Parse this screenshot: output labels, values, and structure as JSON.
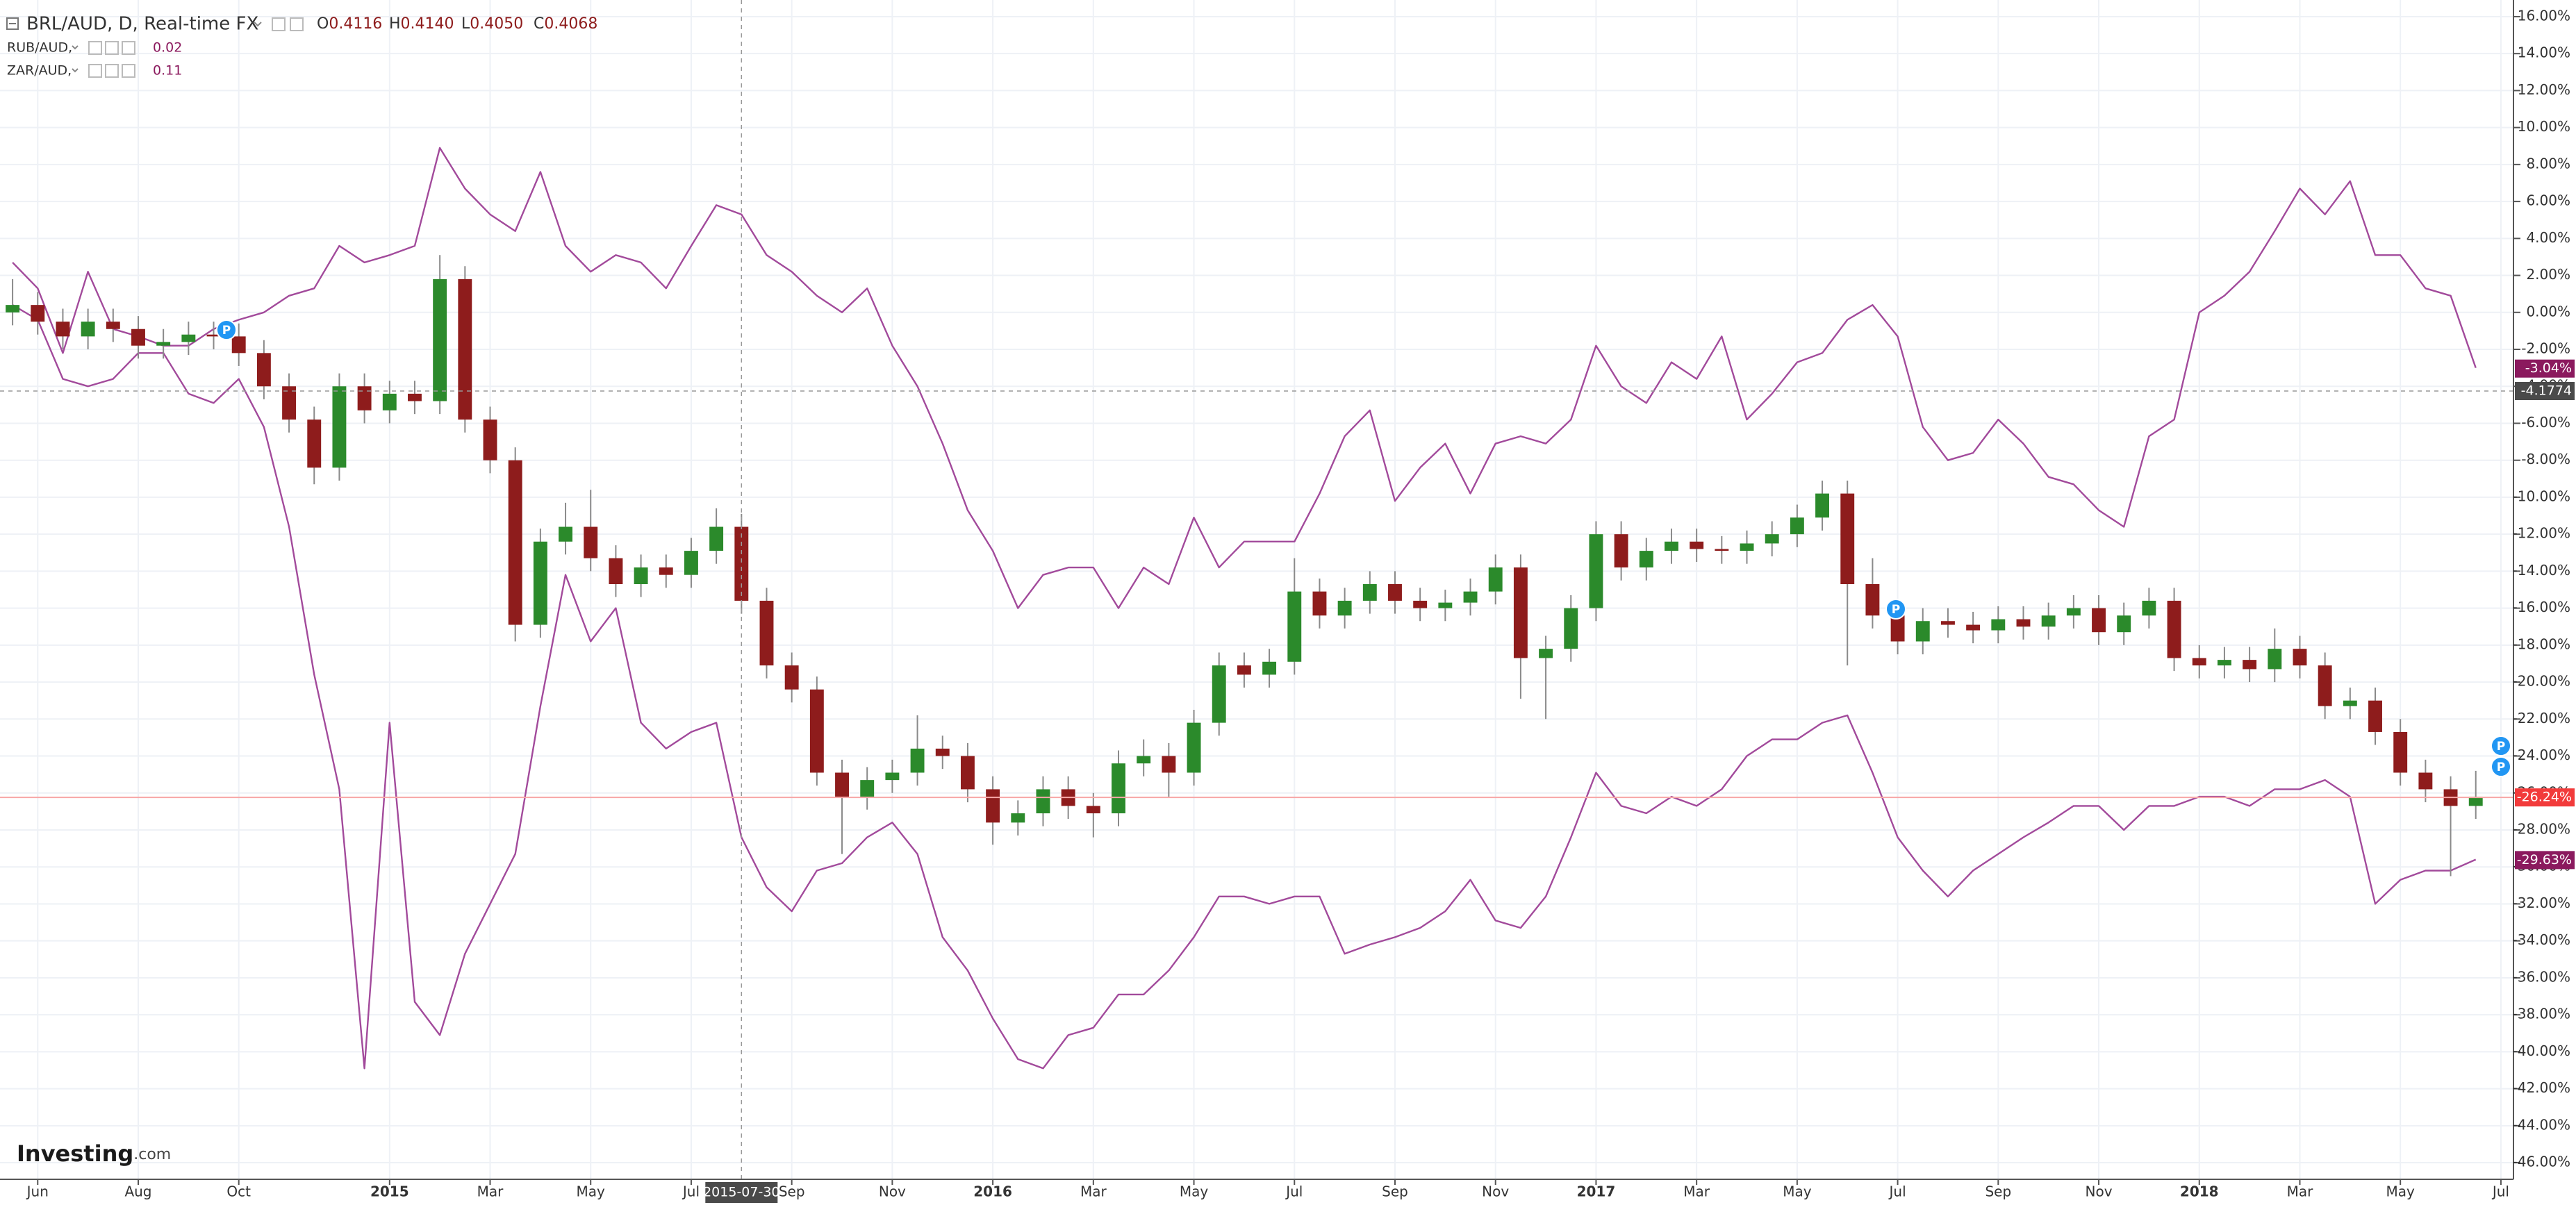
{
  "brand": "Investing",
  "brand_suffix": ".com",
  "chart_data": {
    "type": "candlestick",
    "title": "BRL/AUD, D, Real-time FX",
    "ohlc_legend": [
      {
        "prefix": "O",
        "value": 0.4116
      },
      {
        "prefix": "H",
        "value": 0.414,
        "label": "0.4140"
      },
      {
        "prefix": "L",
        "value": 0.405,
        "label": "0.4050"
      },
      {
        "prefix": "C",
        "value": 0.4068
      }
    ],
    "crosshair": {
      "x_label": "2015-07-30",
      "y_label": -4.1774
    },
    "event_markers": [
      "P",
      "P",
      "P",
      "P"
    ],
    "grid": true,
    "ylim": [
      -46.9,
      16.9
    ],
    "yticks": [
      {
        "value": 16,
        "label": "16.00%"
      },
      {
        "value": 14,
        "label": "14.00%"
      },
      {
        "value": 12,
        "label": "12.00%"
      },
      {
        "value": 10,
        "label": "10.00%"
      },
      {
        "value": 8,
        "label": "8.00%"
      },
      {
        "value": 6,
        "label": "6.00%"
      },
      {
        "value": 4,
        "label": "4.00%"
      },
      {
        "value": 2,
        "label": "2.00%"
      },
      {
        "value": 0,
        "label": "0.00%"
      },
      {
        "value": -2,
        "label": "-2.00%"
      },
      {
        "value": -4,
        "label": "-4.00%"
      },
      {
        "value": -6,
        "label": "-6.00%"
      },
      {
        "value": -8,
        "label": "-8.00%"
      },
      {
        "value": -10,
        "label": "-10.00%"
      },
      {
        "value": -12,
        "label": "-12.00%"
      },
      {
        "value": -14,
        "label": "-14.00%"
      },
      {
        "value": -16,
        "label": "-16.00%"
      },
      {
        "value": -18,
        "label": "-18.00%"
      },
      {
        "value": -20,
        "label": "-20.00%"
      },
      {
        "value": -22,
        "label": "-22.00%"
      },
      {
        "value": -24,
        "label": "-24.00%"
      },
      {
        "value": -26,
        "label": "-26.00%"
      },
      {
        "value": -28,
        "label": "-28.00%"
      },
      {
        "value": -30,
        "label": "-30.00%"
      },
      {
        "value": -32,
        "label": "-32.00%"
      },
      {
        "value": -34,
        "label": "-34.00%"
      },
      {
        "value": -36,
        "label": "-36.00%"
      },
      {
        "value": -38,
        "label": "-38.00%"
      },
      {
        "value": -40,
        "label": "-40.00%"
      },
      {
        "value": -42,
        "label": "-42.00%"
      },
      {
        "value": -44,
        "label": "-44.00%"
      },
      {
        "value": -46,
        "label": "-46.00%"
      }
    ],
    "categories": [
      null,
      "Jun",
      null,
      null,
      null,
      "Aug",
      null,
      null,
      null,
      "Oct",
      null,
      null,
      null,
      null,
      null,
      "2015",
      null,
      null,
      null,
      "Mar",
      null,
      null,
      null,
      "May",
      null,
      null,
      null,
      "Jul",
      null,
      null,
      null,
      "Sep",
      null,
      null,
      null,
      "Nov",
      null,
      null,
      null,
      "2016",
      null,
      null,
      null,
      "Mar",
      null,
      null,
      null,
      "May",
      null,
      null,
      null,
      "Jul",
      null,
      null,
      null,
      "Sep",
      null,
      null,
      null,
      "Nov",
      null,
      null,
      null,
      "2017",
      null,
      null,
      null,
      "Mar",
      null,
      null,
      null,
      "May",
      null,
      null,
      null,
      "Jul",
      null,
      null,
      null,
      "Sep",
      null,
      null,
      null,
      "Nov",
      null,
      null,
      null,
      "2018",
      null,
      null,
      null,
      "Mar",
      null,
      null,
      null,
      "May",
      null,
      null,
      null,
      "Jul"
    ],
    "series": [
      {
        "type": "candlestick",
        "color_up": "#2b8a2b",
        "color_down": "#8e1c1c",
        "wick_color": "#8a8a8a",
        "last_label": {
          "value": -26.24,
          "label": "-26.24%"
        },
        "last_color": "#f23b3b",
        "values": [
          [
            0,
            1.8,
            -0.7,
            0.4
          ],
          [
            0.4,
            1.1,
            -1.2,
            -0.5
          ],
          [
            -0.5,
            0.2,
            -2,
            -1.3
          ],
          [
            -1.3,
            0.2,
            -2,
            -0.5
          ],
          [
            -0.5,
            0.2,
            -1.6,
            -0.9
          ],
          [
            -0.9,
            -0.2,
            -2.5,
            -1.8
          ],
          [
            -1.8,
            -0.9,
            -2.5,
            -1.6
          ],
          [
            -1.6,
            -0.5,
            -2.3,
            -1.2
          ],
          [
            -1.2,
            -0.5,
            -2,
            -1.3
          ],
          [
            -1.3,
            -0.6,
            -2.9,
            -2.2
          ],
          [
            -2.2,
            -1.5,
            -4.7,
            -4
          ],
          [
            -4,
            -3.3,
            -6.5,
            -5.8
          ],
          [
            -5.8,
            -5.1,
            -9.3,
            -8.4
          ],
          [
            -8.4,
            -3.3,
            -9.1,
            -4
          ],
          [
            -4,
            -3.3,
            -6,
            -5.3
          ],
          [
            -5.3,
            -3.7,
            -6,
            -4.4
          ],
          [
            -4.4,
            -3.7,
            -5.5,
            -4.8
          ],
          [
            -4.8,
            3.1,
            -5.5,
            1.8
          ],
          [
            1.8,
            2.5,
            -6.5,
            -5.8
          ],
          [
            -5.8,
            -5.1,
            -8.7,
            -8
          ],
          [
            -8,
            -7.3,
            -17.8,
            -16.9
          ],
          [
            -16.9,
            -11.7,
            -17.6,
            -12.4
          ],
          [
            -12.4,
            -10.3,
            -13.1,
            -11.6
          ],
          [
            -11.6,
            -9.6,
            -14,
            -13.3
          ],
          [
            -13.3,
            -12.6,
            -15.4,
            -14.7
          ],
          [
            -14.7,
            -13.1,
            -15.4,
            -13.8
          ],
          [
            -13.8,
            -13.1,
            -14.9,
            -14.2
          ],
          [
            -14.2,
            -12.2,
            -14.9,
            -12.9
          ],
          [
            -12.9,
            -10.6,
            -13.6,
            -11.6
          ],
          [
            -11.6,
            -10.9,
            -16.3,
            -15.6
          ],
          [
            -15.6,
            -14.9,
            -19.8,
            -19.1
          ],
          [
            -19.1,
            -18.4,
            -21.1,
            -20.4
          ],
          [
            -20.4,
            -19.7,
            -25.6,
            -24.9
          ],
          [
            -24.9,
            -24.2,
            -29.3,
            -26.2
          ],
          [
            -26.2,
            -24.6,
            -26.9,
            -25.3
          ],
          [
            -25.3,
            -24.2,
            -26,
            -24.9
          ],
          [
            -24.9,
            -21.8,
            -25.6,
            -23.6
          ],
          [
            -23.6,
            -22.9,
            -24.7,
            -24
          ],
          [
            -24,
            -23.3,
            -26.5,
            -25.8
          ],
          [
            -25.8,
            -25.1,
            -28.8,
            -27.6
          ],
          [
            -27.6,
            -26.4,
            -28.3,
            -27.1
          ],
          [
            -27.1,
            -25.1,
            -27.8,
            -25.8
          ],
          [
            -25.8,
            -25.1,
            -27.4,
            -26.7
          ],
          [
            -26.7,
            -26,
            -28.4,
            -27.1
          ],
          [
            -27.1,
            -23.7,
            -27.8,
            -24.4
          ],
          [
            -24.4,
            -23.1,
            -25.1,
            -24
          ],
          [
            -24,
            -23.3,
            -26.2,
            -24.9
          ],
          [
            -24.9,
            -21.5,
            -25.6,
            -22.2
          ],
          [
            -22.2,
            -18.4,
            -22.9,
            -19.1
          ],
          [
            -19.1,
            -18.4,
            -20.3,
            -19.6
          ],
          [
            -19.6,
            -18.2,
            -20.3,
            -18.9
          ],
          [
            -18.9,
            -13.3,
            -19.6,
            -15.1
          ],
          [
            -15.1,
            -14.4,
            -17.1,
            -16.4
          ],
          [
            -16.4,
            -14.9,
            -17.1,
            -15.6
          ],
          [
            -15.6,
            -14,
            -16.3,
            -14.7
          ],
          [
            -14.7,
            -14,
            -16.3,
            -15.6
          ],
          [
            -15.6,
            -14.9,
            -16.7,
            -16
          ],
          [
            -16,
            -15,
            -16.7,
            -15.7
          ],
          [
            -15.7,
            -14.4,
            -16.4,
            -15.1
          ],
          [
            -15.1,
            -13.1,
            -15.8,
            -13.8
          ],
          [
            -13.8,
            -13.1,
            -20.9,
            -18.7
          ],
          [
            -18.7,
            -17.5,
            -22,
            -18.2
          ],
          [
            -18.2,
            -15.3,
            -18.9,
            -16
          ],
          [
            -16,
            -11.3,
            -16.7,
            -12
          ],
          [
            -12,
            -11.3,
            -14.5,
            -13.8
          ],
          [
            -13.8,
            -12.2,
            -14.5,
            -12.9
          ],
          [
            -12.9,
            -11.7,
            -13.6,
            -12.4
          ],
          [
            -12.4,
            -11.7,
            -13.5,
            -12.8
          ],
          [
            -12.8,
            -12.1,
            -13.6,
            -12.9
          ],
          [
            -12.9,
            -11.8,
            -13.6,
            -12.5
          ],
          [
            -12.5,
            -11.3,
            -13.2,
            -12
          ],
          [
            -12,
            -10.4,
            -12.7,
            -11.1
          ],
          [
            -11.1,
            -9.1,
            -11.8,
            -9.8
          ],
          [
            -9.8,
            -9.1,
            -19.1,
            -14.7
          ],
          [
            -14.7,
            -13.3,
            -17.1,
            -16.4
          ],
          [
            -16.4,
            -15.7,
            -18.5,
            -17.8
          ],
          [
            -17.8,
            -16,
            -18.5,
            -16.7
          ],
          [
            -16.7,
            -16,
            -17.6,
            -16.9
          ],
          [
            -16.9,
            -16.2,
            -17.9,
            -17.2
          ],
          [
            -17.2,
            -15.9,
            -17.9,
            -16.6
          ],
          [
            -16.6,
            -15.9,
            -17.7,
            -17
          ],
          [
            -17,
            -15.7,
            -17.7,
            -16.4
          ],
          [
            -16.4,
            -15.3,
            -17.1,
            -16
          ],
          [
            -16,
            -15.3,
            -18,
            -17.3
          ],
          [
            -17.3,
            -15.7,
            -18,
            -16.4
          ],
          [
            -16.4,
            -14.9,
            -17.1,
            -15.6
          ],
          [
            -15.6,
            -14.9,
            -19.4,
            -18.7
          ],
          [
            -18.7,
            -18,
            -19.8,
            -19.1
          ],
          [
            -19.1,
            -18.1,
            -19.8,
            -18.8
          ],
          [
            -18.8,
            -18.1,
            -20,
            -19.3
          ],
          [
            -19.3,
            -17.1,
            -20,
            -18.2
          ],
          [
            -18.2,
            -17.5,
            -19.8,
            -19.1
          ],
          [
            -19.1,
            -18.4,
            -22,
            -21.3
          ],
          [
            -21.3,
            -20.3,
            -22,
            -21
          ],
          [
            -21,
            -20.3,
            -23.4,
            -22.7
          ],
          [
            -22.7,
            -22,
            -25.6,
            -24.9
          ],
          [
            -24.9,
            -24.2,
            -26.5,
            -25.8
          ],
          [
            -25.8,
            -25.1,
            -30.5,
            -26.7
          ],
          [
            -26.7,
            -24.8,
            -27.4,
            -26.2
          ],
          null
        ]
      },
      {
        "type": "line",
        "name": "ZAR/AUD,",
        "legend_value": 0.11,
        "color": "#a24a9b",
        "tag_color": "#8b1a5e",
        "last_label": {
          "value": -3.04,
          "label": "-3.04%"
        },
        "values": [
          2.7,
          1.3,
          -2.2,
          2.2,
          -0.9,
          -1.3,
          -1.8,
          -1.8,
          -0.9,
          -0.4,
          0,
          0.9,
          1.3,
          3.6,
          2.7,
          3.1,
          3.6,
          8.9,
          6.7,
          5.3,
          4.4,
          7.6,
          3.6,
          2.2,
          3.1,
          2.7,
          1.3,
          3.6,
          5.8,
          5.3,
          3.1,
          2.2,
          0.9,
          0,
          1.3,
          -1.8,
          -4,
          -7.1,
          -10.7,
          -12.9,
          -16,
          -14.2,
          -13.8,
          -13.8,
          -16,
          -13.8,
          -14.7,
          -11.1,
          -13.8,
          -12.4,
          -12.4,
          -12.4,
          -9.8,
          -6.7,
          -5.3,
          -10.2,
          -8.4,
          -7.1,
          -9.8,
          -7.1,
          -6.7,
          -7.1,
          -5.8,
          -1.8,
          -4,
          -4.9,
          -2.7,
          -3.6,
          -1.3,
          -5.8,
          -4.4,
          -2.7,
          -2.2,
          -0.4,
          0.4,
          -1.3,
          -6.2,
          -8,
          -7.6,
          -5.8,
          -7.1,
          -8.9,
          -9.3,
          -10.7,
          -11.6,
          -6.7,
          -5.8,
          0,
          0.9,
          2.2,
          4.4,
          6.7,
          5.3,
          7.1,
          3.1,
          3.1,
          1.3,
          0.9,
          -3,
          null
        ]
      },
      {
        "type": "line",
        "name": "RUB/AUD,",
        "legend_value": 0.02,
        "color": "#a24a9b",
        "tag_color": "#8b1a5e",
        "last_label": {
          "value": -29.63,
          "label": "-29.63%"
        },
        "values": [
          0.4,
          -0.4,
          -3.6,
          -4,
          -3.6,
          -2.2,
          -2.2,
          -4.4,
          -4.9,
          -3.6,
          -6.2,
          -11.6,
          -19.6,
          -25.8,
          -40.9,
          -22.2,
          -37.3,
          -39.1,
          -34.7,
          -32,
          -29.3,
          -21.3,
          -14.2,
          -17.8,
          -16,
          -22.2,
          -23.6,
          -22.7,
          -22.2,
          -28.4,
          -31.1,
          -32.4,
          -30.2,
          -29.8,
          -28.4,
          -27.6,
          -29.3,
          -33.8,
          -35.6,
          -38.2,
          -40.4,
          -40.9,
          -39.1,
          -38.7,
          -36.9,
          -36.9,
          -35.6,
          -33.8,
          -31.6,
          -31.6,
          -32,
          -31.6,
          -31.6,
          -34.7,
          -34.2,
          -33.8,
          -33.3,
          -32.4,
          -30.7,
          -32.9,
          -33.3,
          -31.6,
          -28.4,
          -24.9,
          -26.7,
          -27.1,
          -26.2,
          -26.7,
          -25.8,
          -24,
          -23.1,
          -23.1,
          -22.2,
          -21.8,
          -24.9,
          -28.4,
          -30.2,
          -31.6,
          -30.2,
          -29.3,
          -28.4,
          -27.6,
          -26.7,
          -26.7,
          -28,
          -26.7,
          -26.7,
          -26.2,
          -26.2,
          -26.7,
          -25.8,
          -25.8,
          -25.3,
          -26.2,
          -32,
          -30.7,
          -30.2,
          -30.2,
          -29.6,
          null
        ]
      }
    ]
  }
}
